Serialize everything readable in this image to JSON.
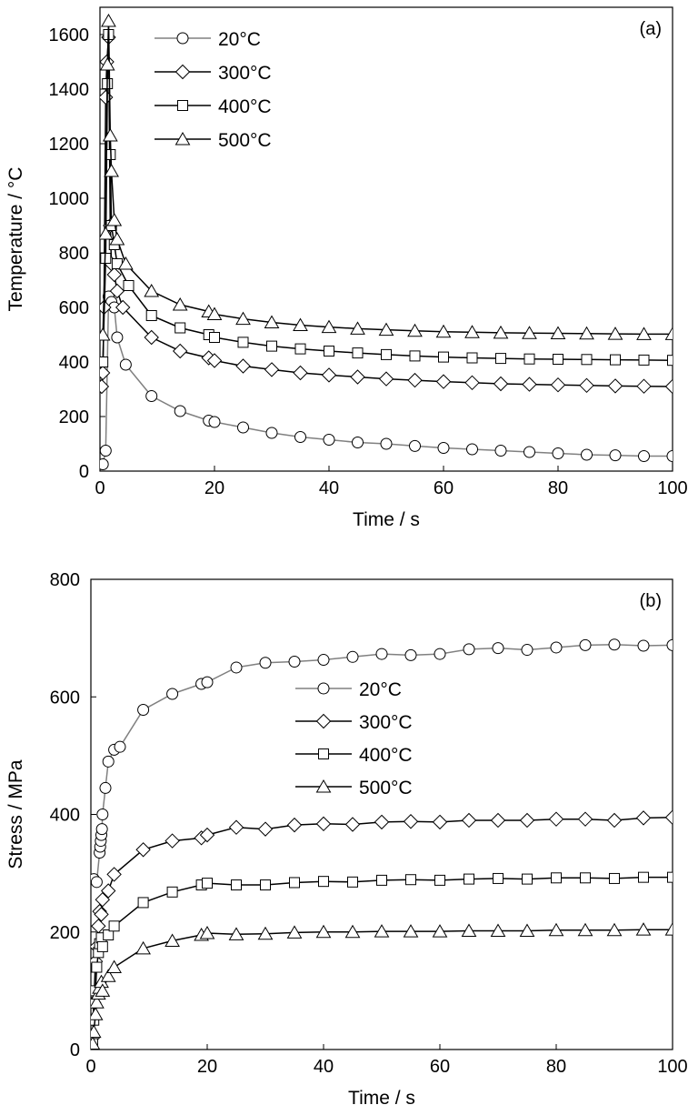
{
  "chart_data": [
    {
      "type": "line",
      "panel_label": "(a)",
      "xlabel": "Time / s",
      "ylabel": "Temperature / °C",
      "xlim": [
        0,
        100
      ],
      "ylim": [
        0,
        1700
      ],
      "xticks": [
        0,
        20,
        40,
        60,
        80,
        100
      ],
      "yticks": [
        0,
        200,
        400,
        600,
        800,
        1000,
        1200,
        1400,
        1600
      ],
      "legend_position": "upper-left",
      "series": [
        {
          "name": "20°C",
          "marker": "circle",
          "color": "#808080",
          "x": [
            0.5,
            1.0,
            1.5,
            2.0,
            2.5,
            3.0,
            4.5,
            9.0,
            14.0,
            19.0,
            20.0,
            25.0,
            30.0,
            35.0,
            40.0,
            45.0,
            50.0,
            55.0,
            60.0,
            65.0,
            70.0,
            75.0,
            80.0,
            85.0,
            90.0,
            95.0,
            100.0
          ],
          "y": [
            25,
            75,
            640,
            620,
            600,
            490,
            390,
            275,
            220,
            185,
            180,
            160,
            140,
            125,
            115,
            105,
            100,
            92,
            85,
            80,
            75,
            70,
            65,
            60,
            58,
            55,
            55
          ]
        },
        {
          "name": "300°C",
          "marker": "diamond",
          "color": "#000000",
          "x": [
            0.3,
            0.5,
            0.7,
            1.0,
            1.2,
            1.5,
            1.8,
            2.0,
            2.5,
            3.0,
            4.0,
            9.0,
            14.0,
            19.0,
            20.0,
            25.0,
            30.0,
            35.0,
            40.0,
            45.0,
            50.0,
            55.0,
            60.0,
            65.0,
            70.0,
            75.0,
            80.0,
            85.0,
            90.0,
            95.0,
            100.0
          ],
          "y": [
            310,
            360,
            600,
            1370,
            1500,
            1590,
            900,
            760,
            720,
            660,
            600,
            490,
            440,
            415,
            405,
            385,
            372,
            360,
            352,
            345,
            338,
            333,
            328,
            324,
            320,
            318,
            316,
            314,
            312,
            311,
            310
          ]
        },
        {
          "name": "400°C",
          "marker": "square",
          "color": "#000000",
          "x": [
            0.5,
            1.0,
            1.3,
            1.5,
            1.8,
            2.0,
            2.5,
            3.0,
            5.0,
            9.0,
            14.0,
            19.0,
            20.0,
            25.0,
            30.0,
            35.0,
            40.0,
            45.0,
            50.0,
            55.0,
            60.0,
            65.0,
            70.0,
            75.0,
            80.0,
            85.0,
            90.0,
            95.0,
            100.0
          ],
          "y": [
            400,
            780,
            1420,
            1600,
            1160,
            900,
            830,
            760,
            680,
            570,
            525,
            500,
            490,
            472,
            458,
            448,
            440,
            433,
            427,
            422,
            418,
            415,
            413,
            411,
            410,
            409,
            408,
            407,
            406
          ]
        },
        {
          "name": "500°C",
          "marker": "triangle",
          "color": "#000000",
          "x": [
            0.5,
            1.0,
            1.3,
            1.5,
            1.8,
            2.0,
            2.5,
            3.0,
            4.5,
            9.0,
            14.0,
            19.0,
            20.0,
            25.0,
            30.0,
            35.0,
            40.0,
            45.0,
            50.0,
            55.0,
            60.0,
            65.0,
            70.0,
            75.0,
            80.0,
            85.0,
            90.0,
            95.0,
            100.0
          ],
          "y": [
            500,
            870,
            1490,
            1650,
            1230,
            1100,
            920,
            850,
            760,
            660,
            610,
            585,
            575,
            558,
            545,
            535,
            528,
            522,
            518,
            514,
            511,
            509,
            507,
            506,
            505,
            504,
            503,
            502,
            502
          ]
        }
      ]
    },
    {
      "type": "line",
      "panel_label": "(b)",
      "xlabel": "Time / s",
      "ylabel": "Stress / MPa",
      "xlim": [
        0,
        100
      ],
      "ylim": [
        0,
        800
      ],
      "xticks": [
        0,
        20,
        40,
        60,
        80,
        100
      ],
      "yticks": [
        0,
        200,
        400,
        600,
        800
      ],
      "legend_position": "center",
      "series": [
        {
          "name": "20°C",
          "marker": "circle",
          "color": "#808080",
          "x": [
            0.5,
            1.0,
            1.5,
            1.6,
            1.7,
            1.8,
            1.9,
            2.0,
            2.5,
            3.0,
            4.0,
            5.0,
            9.0,
            14.0,
            19.0,
            20.0,
            25.0,
            30.0,
            35.0,
            40.0,
            45.0,
            50.0,
            55.0,
            60.0,
            65.0,
            70.0,
            75.0,
            80.0,
            85.0,
            90.0,
            95.0,
            100.0
          ],
          "y": [
            290,
            285,
            335,
            345,
            355,
            365,
            375,
            400,
            445,
            490,
            510,
            515,
            578,
            605,
            622,
            625,
            650,
            658,
            660,
            663,
            668,
            673,
            671,
            673,
            681,
            683,
            680,
            684,
            688,
            689,
            687,
            688
          ]
        },
        {
          "name": "300°C",
          "marker": "diamond",
          "color": "#000000",
          "x": [
            0.3,
            0.5,
            0.8,
            1.0,
            1.3,
            1.5,
            1.8,
            2.0,
            3.0,
            4.0,
            9.0,
            14.0,
            19.0,
            20.0,
            25.0,
            30.0,
            35.0,
            40.0,
            45.0,
            50.0,
            55.0,
            60.0,
            65.0,
            70.0,
            75.0,
            80.0,
            85.0,
            90.0,
            95.0,
            100.0
          ],
          "y": [
            20,
            80,
            150,
            175,
            210,
            235,
            230,
            255,
            270,
            298,
            340,
            355,
            360,
            365,
            378,
            375,
            382,
            384,
            383,
            387,
            388,
            387,
            390,
            390,
            390,
            392,
            392,
            390,
            394,
            395
          ]
        },
        {
          "name": "400°C",
          "marker": "square",
          "color": "#000000",
          "x": [
            0.3,
            0.5,
            0.8,
            1.0,
            1.3,
            1.5,
            1.8,
            2.0,
            3.0,
            4.0,
            9.0,
            14.0,
            19.0,
            20.0,
            25.0,
            30.0,
            35.0,
            40.0,
            45.0,
            50.0,
            55.0,
            60.0,
            65.0,
            70.0,
            75.0,
            80.0,
            85.0,
            90.0,
            95.0,
            100.0
          ],
          "y": [
            10,
            50,
            100,
            140,
            165,
            180,
            190,
            175,
            195,
            210,
            250,
            268,
            280,
            283,
            280,
            280,
            284,
            286,
            285,
            288,
            289,
            288,
            290,
            291,
            290,
            292,
            292,
            291,
            293,
            293
          ]
        },
        {
          "name": "500°C",
          "marker": "triangle",
          "color": "#000000",
          "x": [
            0.3,
            0.5,
            0.8,
            1.0,
            1.3,
            1.5,
            1.8,
            2.0,
            3.0,
            4.0,
            9.0,
            14.0,
            19.0,
            20.0,
            25.0,
            30.0,
            35.0,
            40.0,
            45.0,
            50.0,
            55.0,
            60.0,
            65.0,
            70.0,
            75.0,
            80.0,
            85.0,
            90.0,
            95.0,
            100.0
          ],
          "y": [
            10,
            30,
            60,
            80,
            95,
            105,
            115,
            100,
            125,
            140,
            172,
            185,
            195,
            198,
            196,
            197,
            199,
            200,
            200,
            201,
            201,
            201,
            202,
            202,
            202,
            203,
            203,
            203,
            204,
            204
          ]
        }
      ]
    }
  ]
}
